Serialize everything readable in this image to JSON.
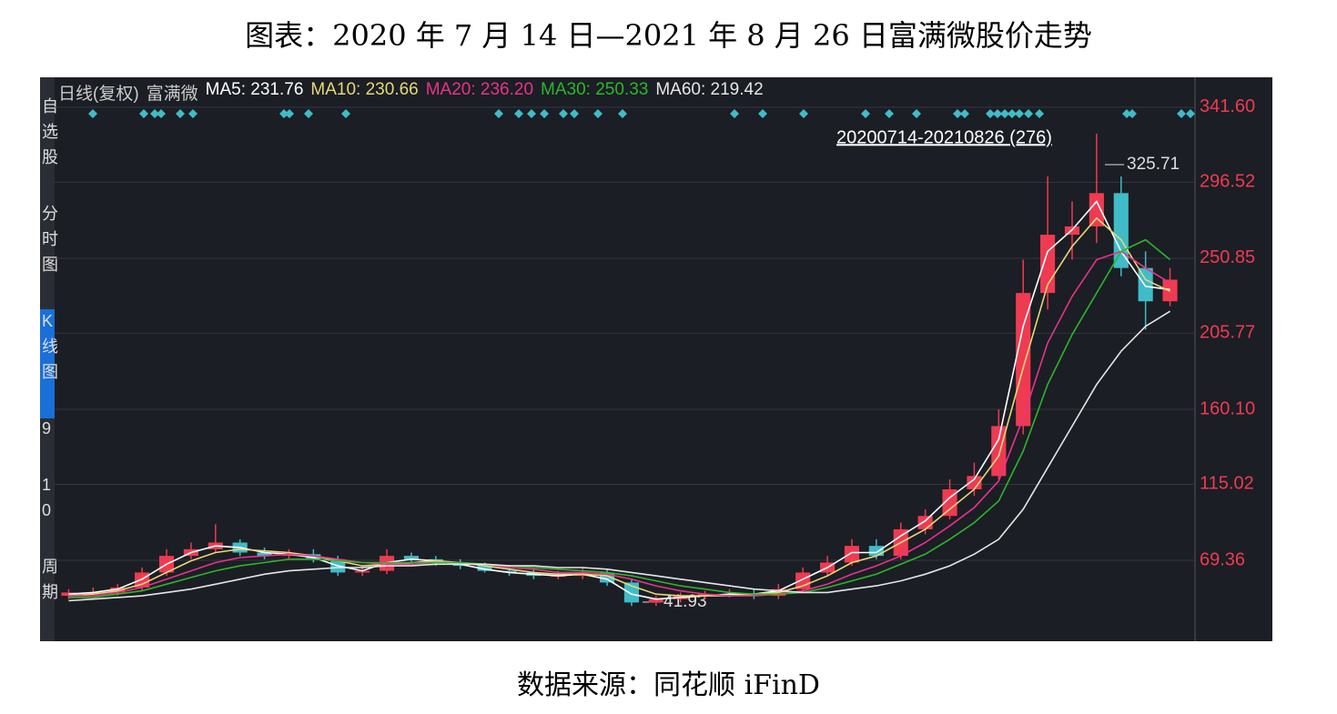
{
  "title": "图表：2020 年 7 月 14 日—2021 年 8 月 26 日富满微股价走势",
  "source": "数据来源：同花顺 iFinD",
  "sidebar": [
    "自选股",
    "分时图",
    "K线图",
    "9",
    "10",
    "周期"
  ],
  "chart_data": {
    "type": "candlestick",
    "header": [
      "日线(复权)",
      "富满微"
    ],
    "range_label": "20200714-20210826 (276)",
    "high_label": "325.71",
    "low_label": "41.93",
    "up_color": "#ee3b52",
    "down_color": "#3fbcc8",
    "ylim": [
      28.9,
      359.6
    ],
    "yticks": [
      69.36,
      115.02,
      {
        "value": 160.1,
        "label": "160.10"
      },
      205.77,
      250.85,
      296.52,
      {
        "value": 341.6,
        "label": "341.60"
      }
    ],
    "grid": true,
    "categories": [
      null,
      null,
      null,
      null,
      null,
      null,
      null,
      null,
      null,
      null,
      null,
      null,
      null,
      null,
      null,
      null,
      null,
      null,
      null,
      null,
      null,
      null,
      null,
      null,
      null,
      null,
      null,
      null,
      null,
      null,
      null,
      null,
      null,
      null,
      null,
      null,
      null,
      null,
      null,
      null,
      null,
      null,
      null,
      null,
      null,
      null
    ],
    "open": [
      48,
      50,
      50,
      53,
      62,
      72,
      76,
      80,
      74,
      72,
      73,
      70,
      62,
      63,
      72,
      70,
      68,
      66,
      63,
      62,
      60,
      60,
      62,
      56,
      44,
      46,
      48,
      49,
      49,
      48,
      52,
      62,
      68,
      78,
      72,
      88,
      96,
      112,
      120,
      150,
      230,
      265,
      270,
      290,
      245,
      225
    ],
    "close": [
      50,
      50,
      53,
      62,
      72,
      76,
      80,
      74,
      72,
      73,
      70,
      62,
      63,
      72,
      70,
      68,
      66,
      63,
      62,
      60,
      60,
      62,
      56,
      44,
      46,
      48,
      49,
      49,
      48,
      52,
      62,
      68,
      78,
      72,
      88,
      96,
      112,
      120,
      150,
      230,
      265,
      270,
      290,
      245,
      225,
      238
    ],
    "high": [
      52,
      53,
      55,
      65,
      76,
      80,
      91,
      82,
      77,
      76,
      76,
      72,
      66,
      76,
      74,
      72,
      70,
      68,
      66,
      64,
      63,
      65,
      64,
      58,
      48,
      50,
      51,
      52,
      52,
      55,
      65,
      72,
      82,
      82,
      92,
      100,
      118,
      128,
      160,
      250,
      300,
      285,
      325.71,
      300,
      255,
      245
    ],
    "low": [
      46,
      48,
      48,
      51,
      60,
      70,
      74,
      72,
      70,
      70,
      68,
      60,
      60,
      61,
      68,
      66,
      64,
      62,
      60,
      58,
      58,
      58,
      54,
      41.93,
      42,
      44,
      46,
      47,
      46,
      46,
      50,
      60,
      66,
      70,
      70,
      85,
      94,
      108,
      118,
      145,
      220,
      250,
      260,
      240,
      208,
      222
    ],
    "series": [
      {
        "name": "MA5: 231.76",
        "color": "#ffffff",
        "values": [
          49,
          50,
          52,
          58,
          67,
          74,
          78,
          77,
          74,
          73,
          71,
          66,
          63,
          68,
          70,
          69,
          67,
          64,
          62,
          61,
          60,
          61,
          58,
          49,
          46,
          47,
          48,
          49,
          49,
          51,
          58,
          65,
          74,
          74,
          84,
          93,
          107,
          118,
          142,
          210,
          255,
          268,
          285,
          255,
          234,
          232
        ]
      },
      {
        "name": "MA10: 230.66",
        "color": "#e6d77a",
        "values": [
          48,
          49,
          51,
          55,
          62,
          69,
          74,
          76,
          75,
          74,
          72,
          69,
          66,
          67,
          68,
          69,
          68,
          66,
          64,
          62,
          61,
          61,
          60,
          54,
          49,
          48,
          48,
          48,
          49,
          50,
          54,
          60,
          68,
          72,
          80,
          88,
          100,
          112,
          132,
          185,
          235,
          258,
          275,
          262,
          238,
          231
        ]
      },
      {
        "name": "MA20: 236.20",
        "color": "#e8338a",
        "values": [
          48,
          48,
          50,
          53,
          58,
          63,
          68,
          71,
          72,
          73,
          72,
          70,
          68,
          67,
          67,
          68,
          68,
          67,
          65,
          64,
          62,
          62,
          61,
          58,
          54,
          51,
          49,
          48,
          48,
          49,
          51,
          55,
          61,
          66,
          72,
          80,
          90,
          101,
          117,
          155,
          200,
          228,
          250,
          255,
          245,
          236
        ]
      },
      {
        "name": "MA30: 250.33",
        "color": "#2db52d",
        "values": [
          47,
          47,
          49,
          51,
          55,
          59,
          63,
          66,
          68,
          70,
          70,
          69,
          68,
          68,
          68,
          68,
          68,
          67,
          66,
          65,
          64,
          63,
          62,
          60,
          57,
          54,
          52,
          50,
          49,
          49,
          50,
          53,
          57,
          61,
          67,
          73,
          82,
          92,
          105,
          135,
          175,
          205,
          230,
          255,
          262,
          250
        ]
      },
      {
        "name": "MA60: 219.42",
        "color": "#e6e6e6",
        "values": [
          45,
          46,
          47,
          48,
          50,
          52,
          55,
          58,
          61,
          63,
          64,
          65,
          65,
          66,
          66,
          67,
          67,
          67,
          66,
          66,
          65,
          65,
          64,
          62,
          60,
          58,
          56,
          54,
          52,
          51,
          50,
          50,
          52,
          54,
          57,
          61,
          66,
          73,
          82,
          100,
          125,
          150,
          175,
          195,
          210,
          219
        ]
      }
    ]
  }
}
